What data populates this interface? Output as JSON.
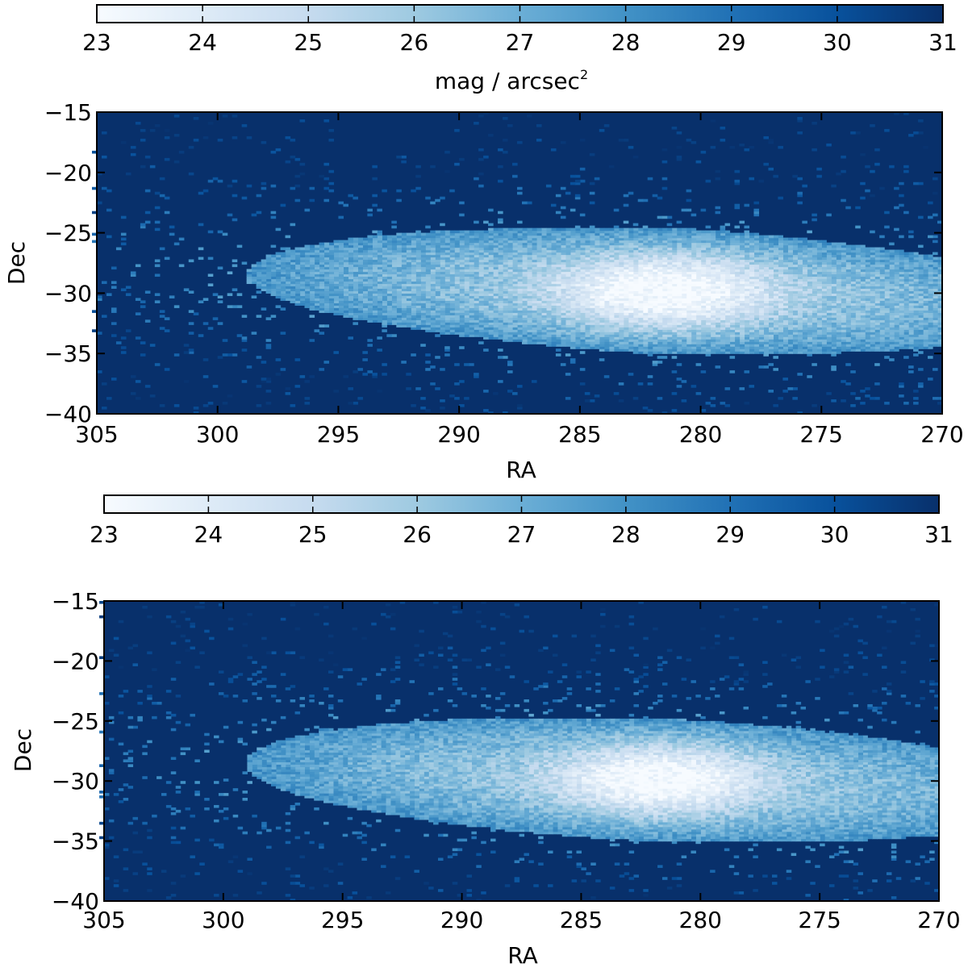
{
  "chart_data": [
    {
      "type": "heatmap",
      "title": "",
      "xlabel": "RA",
      "ylabel": "Dec",
      "x_range": [
        305,
        270
      ],
      "y_range": [
        -40,
        -15
      ],
      "x_ticks": [
        "305",
        "300",
        "295",
        "290",
        "285",
        "280",
        "275",
        "270"
      ],
      "y_ticks": [
        "−15",
        "−20",
        "−25",
        "−30",
        "−35",
        "−40"
      ],
      "colorbar": {
        "range": [
          23,
          31
        ],
        "ticks": [
          "23",
          "24",
          "25",
          "26",
          "27",
          "28",
          "29",
          "30",
          "31"
        ],
        "label_main": "mag / arcsec",
        "label_sup": "2"
      },
      "colormap": "Blues (reversed): low mag = white, high mag = dark blue",
      "distribution": {
        "center_ra": 281.5,
        "center_dec": -29.8,
        "peak_mag": 23.0,
        "background_mag": 31.0,
        "core_sigma_ra": 2.5,
        "core_sigma_dec": 1.6,
        "halo_ra_extent": [
          305,
          270
        ],
        "halo_dec_extent": [
          -38,
          -24
        ],
        "bin_deg": 0.2
      }
    },
    {
      "type": "heatmap",
      "title": "",
      "xlabel": "RA",
      "ylabel": "Dec",
      "x_range": [
        305,
        270
      ],
      "y_range": [
        -40,
        -15
      ],
      "x_ticks": [
        "305",
        "300",
        "295",
        "290",
        "285",
        "280",
        "275",
        "270"
      ],
      "y_ticks": [
        "−15",
        "−20",
        "−25",
        "−30",
        "−35",
        "−40"
      ],
      "colorbar": {
        "range": [
          23,
          31
        ],
        "ticks": [
          "23",
          "24",
          "25",
          "26",
          "27",
          "28",
          "29",
          "30",
          "31"
        ]
      },
      "colormap": "Blues (reversed): low mag = white, high mag = dark blue",
      "distribution": {
        "center_ra": 281.8,
        "center_dec": -29.9,
        "peak_mag": 23.0,
        "background_mag": 31.0,
        "core_sigma_ra": 2.3,
        "core_sigma_dec": 1.5,
        "halo_ra_extent": [
          305,
          270
        ],
        "halo_dec_extent": [
          -38,
          -24
        ],
        "bin_deg": 0.2
      }
    }
  ],
  "colors": {
    "background": "#08306b",
    "cmap": [
      "#f7fbff",
      "#deebf7",
      "#c6dbef",
      "#9ecae1",
      "#6baed6",
      "#4292c6",
      "#2171b5",
      "#08519c",
      "#08306b"
    ]
  }
}
